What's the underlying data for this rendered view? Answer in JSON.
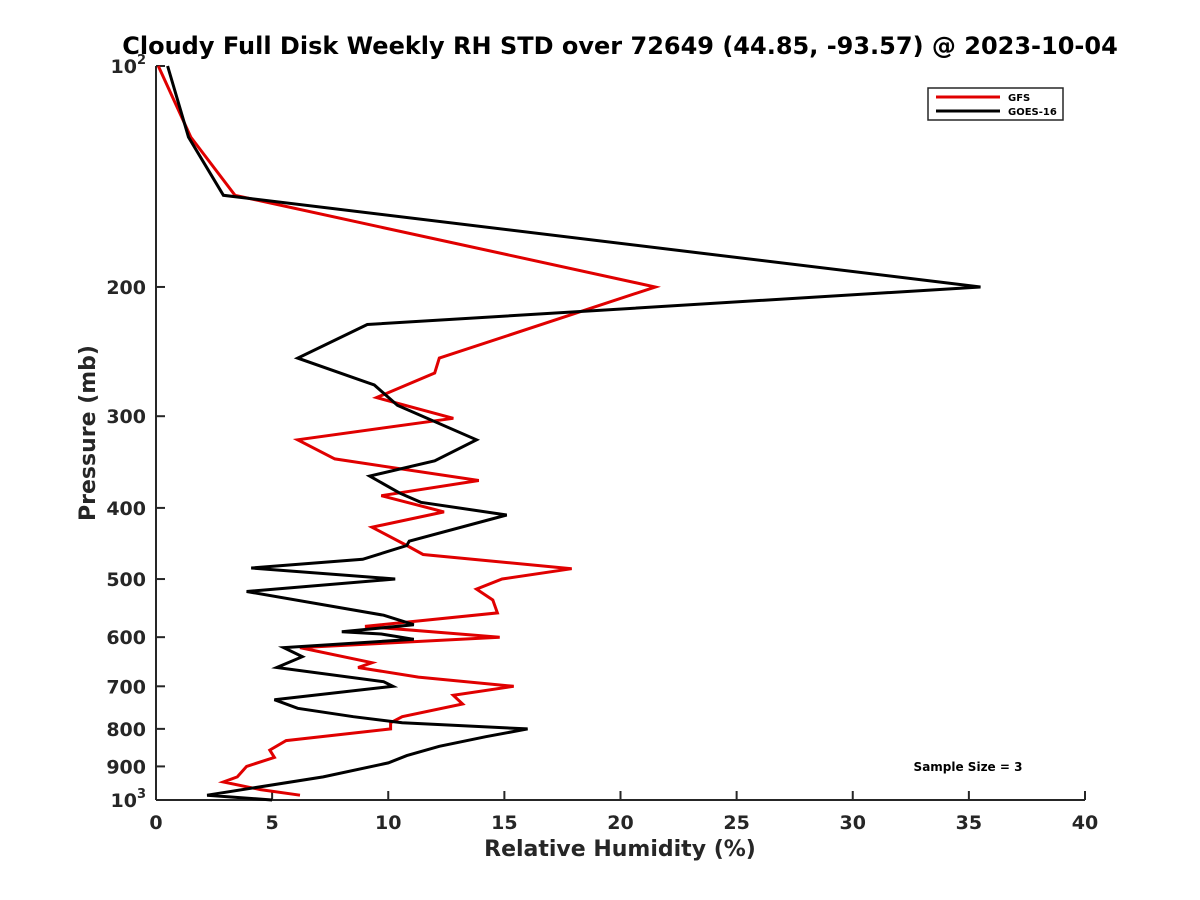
{
  "chart_data": {
    "type": "line",
    "title": "Cloudy Full Disk Weekly RH STD over 72649 (44.85, -93.57) @ 2023-10-04",
    "xlabel": "Relative Humidity (%)",
    "ylabel": "Pressure (mb)",
    "xlim": [
      0,
      40
    ],
    "ylim": [
      100,
      1000
    ],
    "y_scale": "log",
    "y_reversed": true,
    "grid": false,
    "legend_position": "top-right",
    "x_ticks": [
      0,
      5,
      10,
      15,
      20,
      25,
      30,
      35,
      40
    ],
    "y_tick_labels": [
      {
        "value": 100,
        "base": "10",
        "exp": "2"
      },
      {
        "value": 200,
        "base": "200",
        "exp": ""
      },
      {
        "value": 300,
        "base": "300",
        "exp": ""
      },
      {
        "value": 400,
        "base": "400",
        "exp": ""
      },
      {
        "value": 500,
        "base": "500",
        "exp": ""
      },
      {
        "value": 600,
        "base": "600",
        "exp": ""
      },
      {
        "value": 700,
        "base": "700",
        "exp": ""
      },
      {
        "value": 800,
        "base": "800",
        "exp": ""
      },
      {
        "value": 900,
        "base": "900",
        "exp": ""
      },
      {
        "value": 1000,
        "base": "10",
        "exp": "3"
      }
    ],
    "annotation": "Sample Size = 3",
    "series": [
      {
        "name": "GFS",
        "color": "#e00000",
        "points": [
          [
            0.1,
            100
          ],
          [
            1.5,
            125
          ],
          [
            3.4,
            150
          ],
          [
            21.5,
            200
          ],
          [
            12.2,
            250
          ],
          [
            12.0,
            262
          ],
          [
            9.5,
            283
          ],
          [
            12.8,
            302
          ],
          [
            6.1,
            323
          ],
          [
            7.7,
            343
          ],
          [
            13.9,
            367
          ],
          [
            9.7,
            385
          ],
          [
            12.4,
            405
          ],
          [
            9.3,
            425
          ],
          [
            10.8,
            450
          ],
          [
            11.5,
            463
          ],
          [
            17.9,
            484
          ],
          [
            14.9,
            500
          ],
          [
            13.8,
            516
          ],
          [
            14.5,
            534
          ],
          [
            14.7,
            556
          ],
          [
            9.0,
            580
          ],
          [
            14.8,
            600
          ],
          [
            6.2,
            620
          ],
          [
            9.3,
            650
          ],
          [
            8.7,
            660
          ],
          [
            11.3,
            680
          ],
          [
            15.4,
            700
          ],
          [
            12.8,
            720
          ],
          [
            13.2,
            740
          ],
          [
            10.6,
            770
          ],
          [
            10.1,
            785
          ],
          [
            10.1,
            800
          ],
          [
            5.6,
            830
          ],
          [
            4.9,
            855
          ],
          [
            5.1,
            875
          ],
          [
            3.9,
            900
          ],
          [
            3.5,
            930
          ],
          [
            2.9,
            945
          ],
          [
            4.5,
            968
          ],
          [
            6.2,
            985
          ]
        ]
      },
      {
        "name": "GOES-16",
        "color": "#000000",
        "points": [
          [
            0.5,
            100
          ],
          [
            1.4,
            125
          ],
          [
            2.9,
            150
          ],
          [
            35.5,
            200
          ],
          [
            9.1,
            225
          ],
          [
            6.1,
            250
          ],
          [
            9.4,
            272
          ],
          [
            10.4,
            290
          ],
          [
            13.8,
            323
          ],
          [
            12.0,
            345
          ],
          [
            9.2,
            362
          ],
          [
            10.5,
            382
          ],
          [
            11.4,
            393
          ],
          [
            15.1,
            409
          ],
          [
            10.9,
            444
          ],
          [
            10.8,
            450
          ],
          [
            8.9,
            470
          ],
          [
            4.1,
            483
          ],
          [
            10.3,
            500
          ],
          [
            3.9,
            520
          ],
          [
            9.8,
            560
          ],
          [
            11.1,
            577
          ],
          [
            8.0,
            590
          ],
          [
            9.7,
            594
          ],
          [
            11.1,
            604
          ],
          [
            5.5,
            620
          ],
          [
            6.3,
            638
          ],
          [
            5.2,
            660
          ],
          [
            9.8,
            690
          ],
          [
            10.2,
            700
          ],
          [
            5.1,
            730
          ],
          [
            6.1,
            750
          ],
          [
            8.5,
            770
          ],
          [
            10.6,
            785
          ],
          [
            16.0,
            800
          ],
          [
            14.2,
            820
          ],
          [
            12.2,
            845
          ],
          [
            10.8,
            870
          ],
          [
            10.0,
            890
          ],
          [
            7.2,
            930
          ],
          [
            2.2,
            985
          ],
          [
            5.0,
            1000
          ]
        ]
      }
    ]
  }
}
